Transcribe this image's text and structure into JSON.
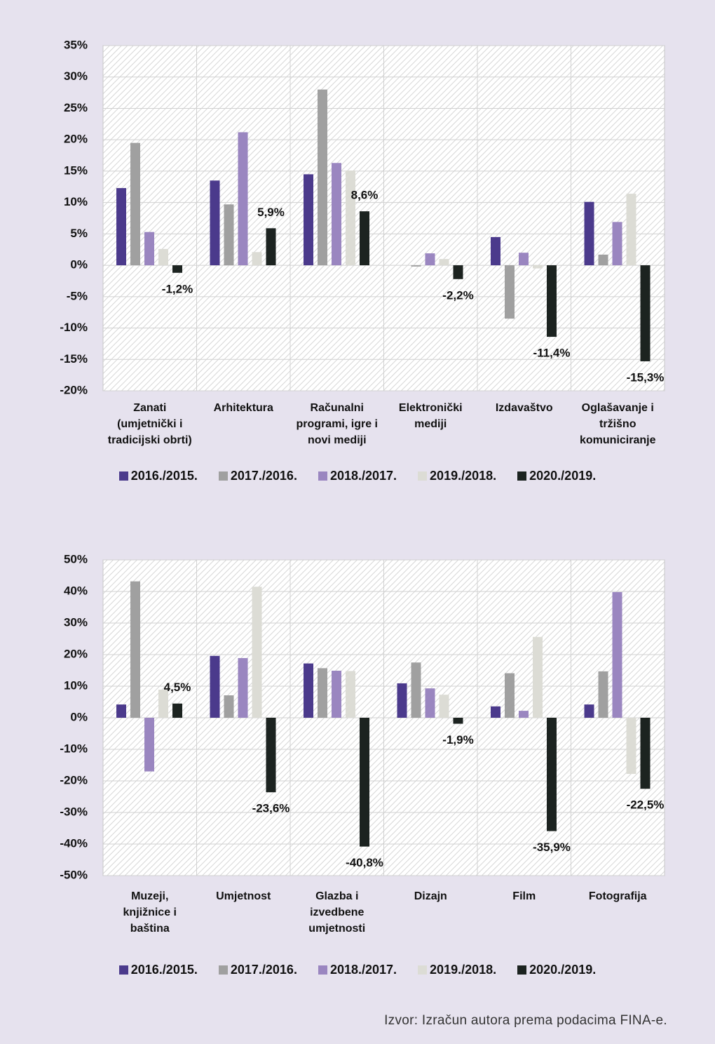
{
  "chart_data": [
    {
      "type": "bar",
      "categories": [
        "Zanati (umjetnički i tradicijski obrti)",
        "Arhitektura",
        "Računalni programi, igre i novi mediji",
        "Elektronički mediji",
        "Izdavaštvo",
        "Oglašavanje i tržišno komuniciranje"
      ],
      "series": [
        {
          "name": "2016./2015.",
          "color": "#4b3a8c",
          "values": [
            12.3,
            13.5,
            14.5,
            0,
            4.5,
            10.1
          ]
        },
        {
          "name": "2017./2016.",
          "color": "#a0a0a0",
          "values": [
            19.5,
            9.7,
            28.0,
            -0.2,
            -8.5,
            1.7
          ]
        },
        {
          "name": "2018./2017.",
          "color": "#9a86c0",
          "values": [
            5.3,
            21.2,
            16.3,
            1.9,
            2.0,
            6.9
          ]
        },
        {
          "name": "2019./2018.",
          "color": "#dcdcd5",
          "values": [
            2.6,
            2.1,
            15.1,
            1.0,
            -0.5,
            11.4
          ]
        },
        {
          "name": "2020./2019.",
          "color": "#1c2320",
          "values": [
            -1.2,
            5.9,
            8.6,
            -2.2,
            -11.4,
            -15.3
          ],
          "value_labels": [
            "-1,2%",
            "5,9%",
            "8,6%",
            "-2,2%",
            "-11,4%",
            "-15,3%"
          ]
        }
      ],
      "ylim": [
        -20,
        35
      ],
      "yticks": [
        {
          "value": -20,
          "label": "-20%"
        },
        {
          "value": -15,
          "label": "-15%"
        },
        {
          "value": -10,
          "label": "-10%"
        },
        {
          "value": -5,
          "label": "-5%"
        },
        {
          "value": 0,
          "label": "0%"
        },
        {
          "value": 5,
          "label": "5%"
        },
        {
          "value": 10,
          "label": "10%"
        },
        {
          "value": 15,
          "label": "15%"
        },
        {
          "value": 20,
          "label": "20%"
        },
        {
          "value": 25,
          "label": "25%"
        },
        {
          "value": 30,
          "label": "30%"
        },
        {
          "value": 35,
          "label": "35%"
        }
      ],
      "grid": true,
      "legend": "bottom"
    },
    {
      "type": "bar",
      "categories": [
        "Muzeji, knjižnice i baština",
        "Umjetnost",
        "Glazba i izvedbene umjetnosti",
        "Dizajn",
        "Film",
        "Fotografija"
      ],
      "series": [
        {
          "name": "2016./2015.",
          "color": "#4b3a8c",
          "values": [
            4.2,
            19.6,
            17.2,
            10.9,
            3.6,
            4.2
          ]
        },
        {
          "name": "2017./2016.",
          "color": "#a0a0a0",
          "values": [
            43.2,
            7.1,
            15.7,
            17.5,
            14.1,
            14.7
          ]
        },
        {
          "name": "2018./2017.",
          "color": "#9a86c0",
          "values": [
            -17.0,
            18.9,
            14.9,
            9.3,
            2.2,
            39.8
          ]
        },
        {
          "name": "2019./2018.",
          "color": "#dcdcd5",
          "values": [
            8.9,
            41.5,
            14.8,
            7.3,
            25.6,
            -17.8
          ]
        },
        {
          "name": "2020./2019.",
          "color": "#1c2320",
          "values": [
            4.5,
            -23.6,
            -40.8,
            -1.9,
            -35.9,
            -22.5
          ],
          "value_labels": [
            "4,5%",
            "-23,6%",
            "-40,8%",
            "-1,9%",
            "-35,9%",
            "-22,5%"
          ]
        }
      ],
      "ylim": [
        -50,
        50
      ],
      "yticks": [
        {
          "value": -50,
          "label": "-50%"
        },
        {
          "value": -40,
          "label": "-40%"
        },
        {
          "value": -30,
          "label": "-30%"
        },
        {
          "value": -20,
          "label": "-20%"
        },
        {
          "value": -10,
          "label": "-10%"
        },
        {
          "value": 0,
          "label": "0%"
        },
        {
          "value": 10,
          "label": "10%"
        },
        {
          "value": 20,
          "label": "20%"
        },
        {
          "value": 30,
          "label": "30%"
        },
        {
          "value": 40,
          "label": "40%"
        },
        {
          "value": 50,
          "label": "50%"
        }
      ],
      "grid": true,
      "legend": "bottom"
    }
  ],
  "source": "Izvor: Izračun autora prema podacima FINA-e."
}
